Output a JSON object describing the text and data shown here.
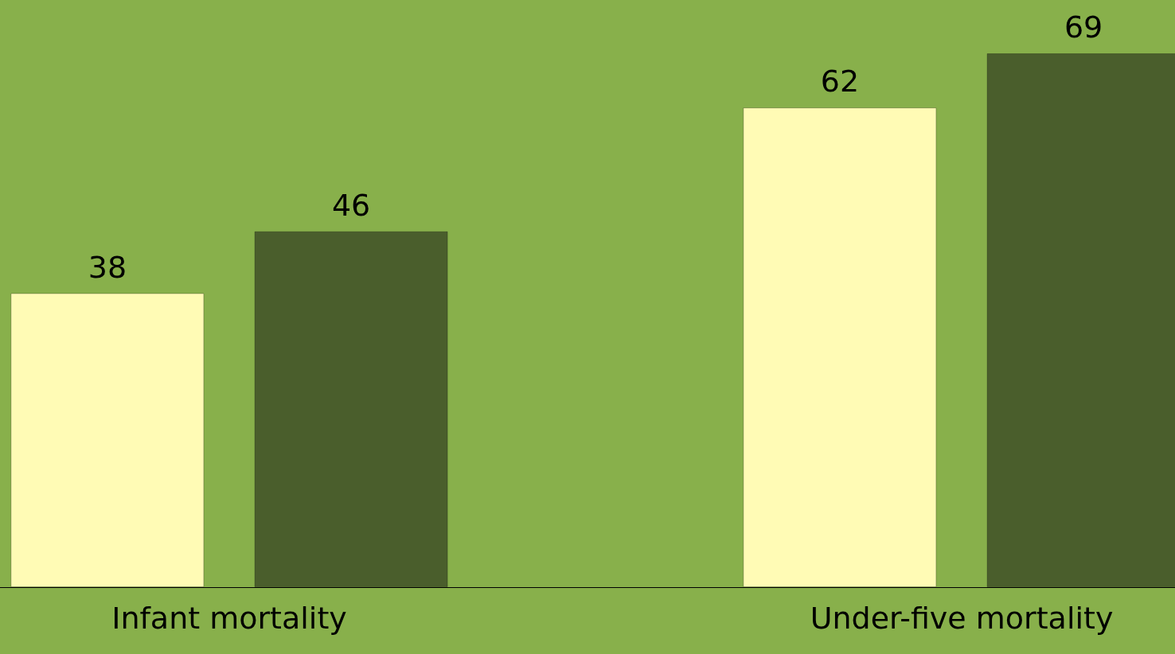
{
  "chart_data": {
    "type": "bar",
    "categories": [
      "Infant mortality",
      "Under-five mortality"
    ],
    "data_labels": true,
    "series": [
      {
        "color": "#fffbb5",
        "values": [
          38,
          62
        ]
      },
      {
        "color": "#4a5e2c",
        "values": [
          46,
          69
        ]
      }
    ]
  }
}
